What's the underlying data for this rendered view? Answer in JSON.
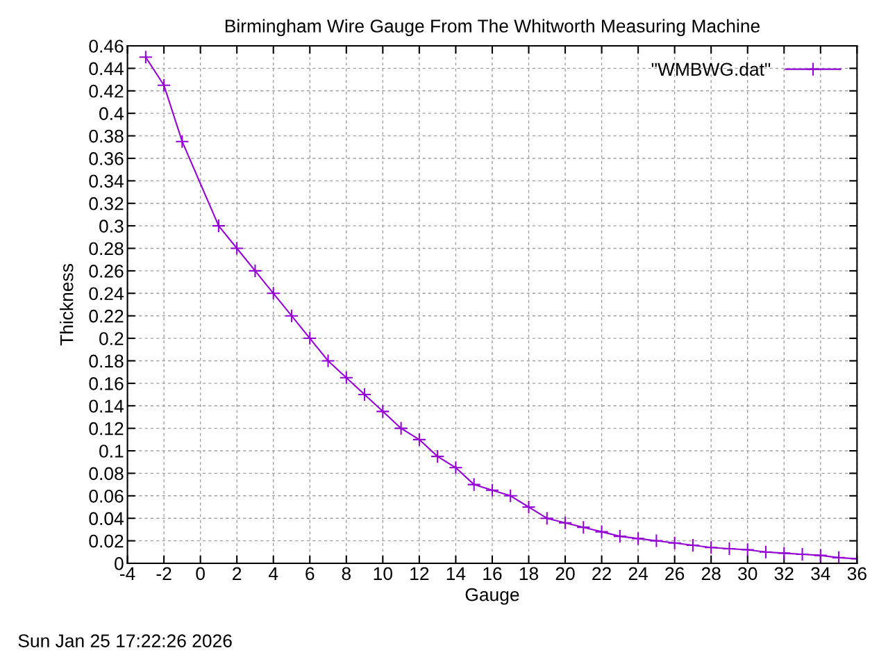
{
  "chart_data": {
    "type": "line",
    "title": "Birmingham Wire Gauge From The Whitworth Measuring Machine",
    "xlabel": "Gauge",
    "ylabel": "Thickness",
    "x": [
      -3,
      -2,
      -1,
      1,
      2,
      3,
      4,
      5,
      6,
      7,
      8,
      9,
      10,
      11,
      12,
      13,
      14,
      15,
      16,
      17,
      18,
      19,
      20,
      21,
      22,
      23,
      24,
      25,
      26,
      27,
      28,
      29,
      30,
      31,
      32,
      33,
      34,
      35,
      36
    ],
    "series": [
      {
        "name": "\"WMBWG.dat\"",
        "color": "#9400d3",
        "values": [
          0.45,
          0.425,
          0.375,
          0.3,
          0.28,
          0.26,
          0.24,
          0.22,
          0.2,
          0.18,
          0.165,
          0.15,
          0.135,
          0.12,
          0.11,
          0.095,
          0.085,
          0.07,
          0.065,
          0.06,
          0.05,
          0.04,
          0.036,
          0.032,
          0.028,
          0.024,
          0.022,
          0.02,
          0.018,
          0.016,
          0.014,
          0.013,
          0.012,
          0.01,
          0.009,
          0.008,
          0.007,
          0.005,
          0.004
        ]
      }
    ],
    "xlim": [
      -4,
      36
    ],
    "xticks": [
      -4,
      -2,
      0,
      2,
      4,
      6,
      8,
      10,
      12,
      14,
      16,
      18,
      20,
      22,
      24,
      26,
      28,
      30,
      32,
      34,
      36
    ],
    "ylim": [
      0,
      0.46
    ],
    "yticks": [
      0,
      0.02,
      0.04,
      0.06,
      0.08,
      0.1,
      0.12,
      0.14,
      0.16,
      0.18,
      0.2,
      0.22,
      0.24,
      0.26,
      0.28,
      0.3,
      0.32,
      0.34,
      0.36,
      0.38,
      0.4,
      0.42,
      0.44,
      0.46
    ],
    "grid": true,
    "legend": "top right",
    "marker": "cross",
    "line_style": "solid",
    "annotations": [
      "Sun Jan 25 17:22:26 2026"
    ]
  }
}
